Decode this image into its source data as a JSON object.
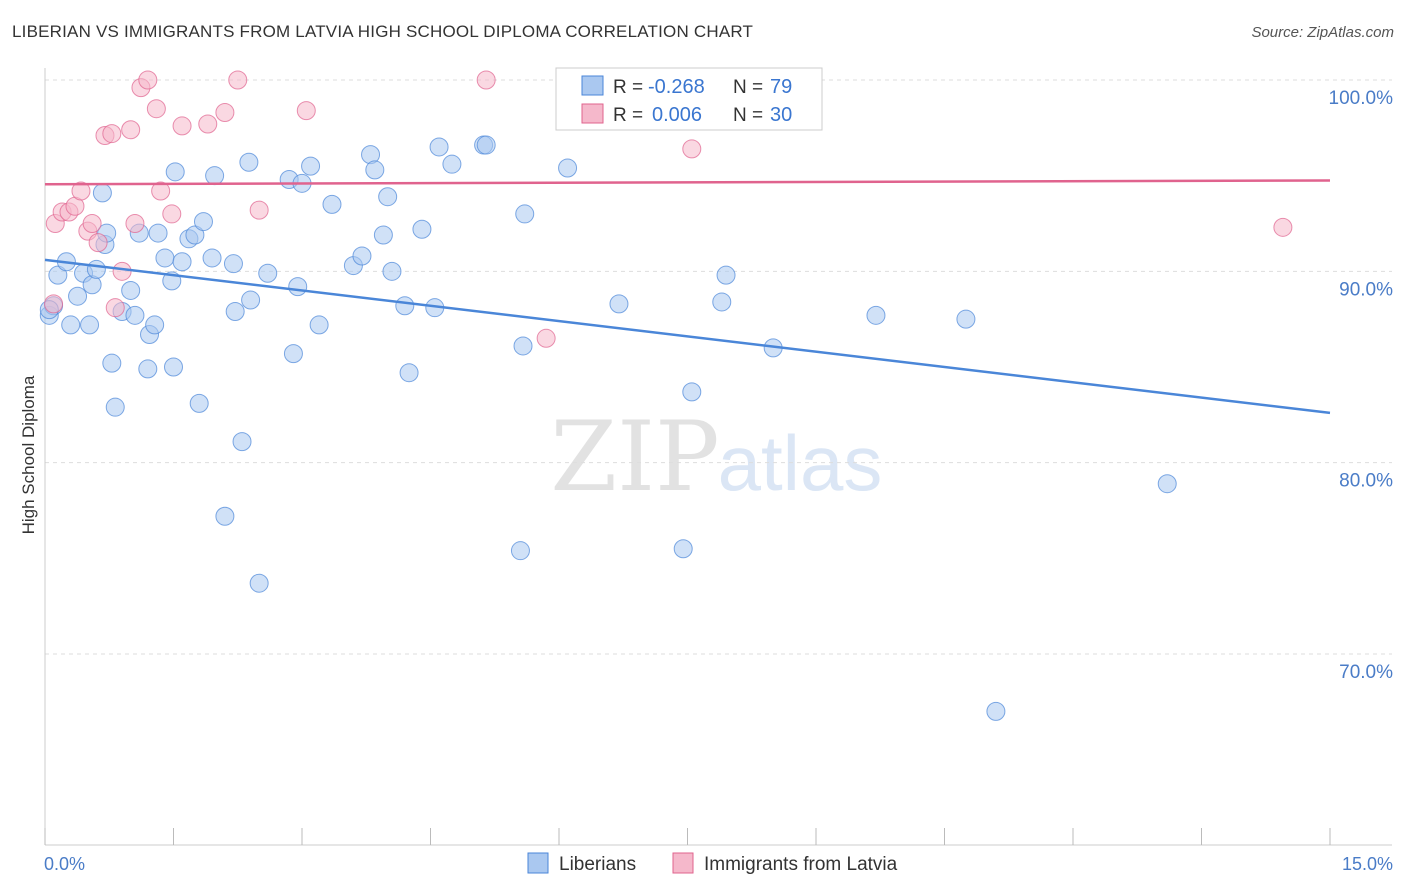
{
  "header": {
    "title": "LIBERIAN VS IMMIGRANTS FROM LATVIA HIGH SCHOOL DIPLOMA CORRELATION CHART",
    "source": "Source: ZipAtlas.com"
  },
  "watermark": {
    "zip": "ZIP",
    "atlas": "atlas"
  },
  "colors": {
    "blue": "#4a86d8",
    "blueFill": "#aac8f0",
    "pink": "#e0638e",
    "pinkFill": "#f5b8cb",
    "tickLabel": "#4a7cc7",
    "grid": "#dddddd"
  },
  "legend_box": {
    "rows": [
      {
        "r_label": "R =",
        "r_value": "-0.268",
        "n_label": "N =",
        "n_value": "79"
      },
      {
        "r_label": "R =",
        "r_value": "0.006",
        "n_label": "N =",
        "n_value": "30"
      }
    ]
  },
  "chart_data": {
    "type": "scatter",
    "title": "LIBERIAN VS IMMIGRANTS FROM LATVIA HIGH SCHOOL DIPLOMA CORRELATION CHART",
    "xlabel": "",
    "ylabel": "High School Diploma",
    "xlim": [
      0,
      15
    ],
    "ylim": [
      60,
      101
    ],
    "x_tick_labels": [
      "0.0%",
      "15.0%"
    ],
    "y_ticks": [
      70,
      80,
      90,
      100
    ],
    "y_tick_labels": [
      "70.0%",
      "80.0%",
      "90.0%",
      "100.0%"
    ],
    "legend": [
      "Liberians",
      "Immigrants from Latvia"
    ],
    "series": [
      {
        "name": "Liberians",
        "r": -0.268,
        "n": 79,
        "trend": {
          "x": [
            0,
            15
          ],
          "y": [
            90.6,
            82.6
          ]
        },
        "points": [
          [
            0.05,
            87.7
          ],
          [
            0.1,
            88.2
          ],
          [
            0.15,
            89.8
          ],
          [
            0.25,
            90.5
          ],
          [
            0.3,
            87.2
          ],
          [
            0.38,
            88.7
          ],
          [
            0.45,
            89.9
          ],
          [
            0.52,
            87.2
          ],
          [
            0.55,
            89.3
          ],
          [
            0.6,
            90.1
          ],
          [
            0.67,
            94.1
          ],
          [
            0.7,
            91.4
          ],
          [
            0.72,
            92.0
          ],
          [
            0.78,
            85.2
          ],
          [
            0.82,
            82.9
          ],
          [
            0.9,
            87.9
          ],
          [
            1.0,
            89.0
          ],
          [
            1.05,
            87.7
          ],
          [
            1.1,
            92.0
          ],
          [
            1.2,
            84.9
          ],
          [
            1.22,
            86.7
          ],
          [
            1.28,
            87.2
          ],
          [
            1.32,
            92.0
          ],
          [
            1.4,
            90.7
          ],
          [
            1.48,
            89.5
          ],
          [
            1.5,
            85.0
          ],
          [
            1.52,
            95.2
          ],
          [
            1.6,
            90.5
          ],
          [
            1.68,
            91.7
          ],
          [
            1.75,
            91.9
          ],
          [
            1.8,
            83.1
          ],
          [
            1.85,
            92.6
          ],
          [
            1.95,
            90.7
          ],
          [
            1.98,
            95.0
          ],
          [
            2.1,
            77.2
          ],
          [
            2.2,
            90.4
          ],
          [
            2.22,
            87.9
          ],
          [
            2.3,
            81.1
          ],
          [
            2.38,
            95.7
          ],
          [
            2.4,
            88.5
          ],
          [
            2.5,
            73.7
          ],
          [
            2.6,
            89.9
          ],
          [
            2.85,
            94.8
          ],
          [
            2.9,
            85.7
          ],
          [
            2.95,
            89.2
          ],
          [
            3.0,
            94.6
          ],
          [
            3.1,
            95.5
          ],
          [
            3.2,
            87.2
          ],
          [
            3.35,
            93.5
          ],
          [
            3.6,
            90.3
          ],
          [
            3.7,
            90.8
          ],
          [
            3.8,
            96.1
          ],
          [
            3.85,
            95.3
          ],
          [
            3.95,
            91.9
          ],
          [
            4.0,
            93.9
          ],
          [
            4.05,
            90.0
          ],
          [
            4.2,
            88.2
          ],
          [
            4.25,
            84.7
          ],
          [
            4.4,
            92.2
          ],
          [
            4.55,
            88.1
          ],
          [
            4.6,
            96.5
          ],
          [
            4.75,
            95.6
          ],
          [
            5.12,
            96.6
          ],
          [
            5.15,
            96.6
          ],
          [
            5.55,
            75.4
          ],
          [
            5.58,
            86.1
          ],
          [
            5.6,
            93.0
          ],
          [
            6.1,
            95.4
          ],
          [
            6.7,
            88.3
          ],
          [
            7.45,
            75.5
          ],
          [
            7.55,
            83.7
          ],
          [
            7.9,
            88.4
          ],
          [
            7.95,
            89.8
          ],
          [
            8.5,
            86.0
          ],
          [
            9.7,
            87.7
          ],
          [
            10.75,
            87.5
          ],
          [
            11.1,
            67.0
          ],
          [
            13.1,
            78.9
          ],
          [
            0.05,
            88.0
          ]
        ]
      },
      {
        "name": "Immigrants from Latvia",
        "r": 0.006,
        "n": 30,
        "trend": {
          "x": [
            0,
            15
          ],
          "y": [
            94.55,
            94.75
          ]
        },
        "points": [
          [
            0.1,
            88.3
          ],
          [
            0.12,
            92.5
          ],
          [
            0.2,
            93.1
          ],
          [
            0.28,
            93.1
          ],
          [
            0.35,
            93.4
          ],
          [
            0.42,
            94.2
          ],
          [
            0.5,
            92.1
          ],
          [
            0.55,
            92.5
          ],
          [
            0.62,
            91.5
          ],
          [
            0.7,
            97.1
          ],
          [
            0.78,
            97.2
          ],
          [
            0.82,
            88.1
          ],
          [
            0.9,
            90.0
          ],
          [
            1.0,
            97.4
          ],
          [
            1.05,
            92.5
          ],
          [
            1.12,
            99.6
          ],
          [
            1.2,
            100.0
          ],
          [
            1.3,
            98.5
          ],
          [
            1.35,
            94.2
          ],
          [
            1.48,
            93.0
          ],
          [
            1.6,
            97.6
          ],
          [
            1.9,
            97.7
          ],
          [
            2.1,
            98.3
          ],
          [
            2.25,
            100.0
          ],
          [
            2.5,
            93.2
          ],
          [
            3.05,
            98.4
          ],
          [
            5.15,
            100.0
          ],
          [
            5.85,
            86.5
          ],
          [
            7.55,
            96.4
          ],
          [
            14.45,
            92.3
          ]
        ]
      }
    ]
  },
  "footer": {
    "x_min_label": "0.0%",
    "x_max_label": "15.0%"
  },
  "bottom_legend": {
    "items": [
      "Liberians",
      "Immigrants from Latvia"
    ]
  }
}
